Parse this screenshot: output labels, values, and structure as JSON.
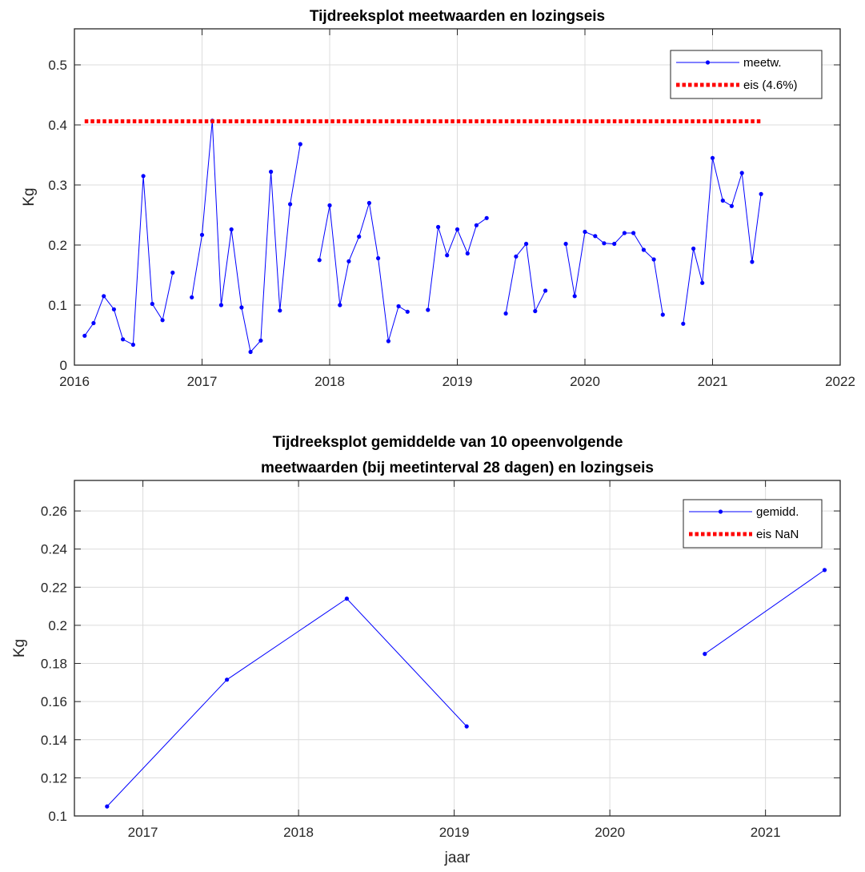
{
  "colors": {
    "series": "#0000ff",
    "threshold": "#ff0000",
    "grid": "#dcdcdc",
    "axis": "#262626"
  },
  "chart_data": [
    {
      "type": "line",
      "title": "Tijdreeksplot meetwaarden en lozingseis",
      "xlabel": "",
      "ylabel": "Kg",
      "xlim": [
        2016,
        2022
      ],
      "ylim": [
        0,
        0.56
      ],
      "x_ticks": [
        2016,
        2017,
        2018,
        2019,
        2020,
        2021,
        2022
      ],
      "y_ticks": [
        0,
        0.1,
        0.2,
        0.3,
        0.4,
        0.5
      ],
      "y_tick_labels": [
        "0",
        "0.1",
        "0.2",
        "0.3",
        "0.4",
        "0.5"
      ],
      "grid": true,
      "legend_position": "top-right",
      "series": [
        {
          "name": "meetw.",
          "style": "line-with-markers",
          "segments": [
            [
              [
                2016.08,
                0.049
              ],
              [
                2016.15,
                0.07
              ],
              [
                2016.23,
                0.115
              ],
              [
                2016.31,
                0.093
              ],
              [
                2016.38,
                0.043
              ],
              [
                2016.46,
                0.034
              ],
              [
                2016.54,
                0.315
              ],
              [
                2016.61,
                0.102
              ],
              [
                2016.69,
                0.075
              ],
              [
                2016.77,
                0.154
              ]
            ],
            [
              [
                2016.92,
                0.113
              ],
              [
                2017.0,
                0.217
              ],
              [
                2017.08,
                0.407
              ],
              [
                2017.15,
                0.1
              ],
              [
                2017.23,
                0.226
              ],
              [
                2017.31,
                0.096
              ],
              [
                2017.38,
                0.022
              ],
              [
                2017.46,
                0.041
              ],
              [
                2017.54,
                0.322
              ],
              [
                2017.61,
                0.091
              ],
              [
                2017.69,
                0.268
              ],
              [
                2017.77,
                0.368
              ]
            ],
            [
              [
                2017.92,
                0.175
              ],
              [
                2018.0,
                0.266
              ],
              [
                2018.08,
                0.1
              ],
              [
                2018.15,
                0.173
              ],
              [
                2018.23,
                0.214
              ],
              [
                2018.31,
                0.27
              ],
              [
                2018.38,
                0.178
              ],
              [
                2018.46,
                0.04
              ],
              [
                2018.54,
                0.098
              ],
              [
                2018.61,
                0.089
              ]
            ],
            [
              [
                2018.77,
                0.092
              ],
              [
                2018.85,
                0.23
              ],
              [
                2018.92,
                0.183
              ],
              [
                2019.0,
                0.226
              ],
              [
                2019.08,
                0.186
              ],
              [
                2019.15,
                0.233
              ],
              [
                2019.23,
                0.245
              ]
            ],
            [
              [
                2019.38,
                0.086
              ],
              [
                2019.46,
                0.181
              ],
              [
                2019.54,
                0.202
              ],
              [
                2019.61,
                0.09
              ],
              [
                2019.69,
                0.124
              ]
            ],
            [
              [
                2019.85,
                0.202
              ],
              [
                2019.92,
                0.115
              ],
              [
                2020.0,
                0.222
              ],
              [
                2020.08,
                0.215
              ],
              [
                2020.15,
                0.203
              ],
              [
                2020.23,
                0.202
              ],
              [
                2020.31,
                0.22
              ],
              [
                2020.38,
                0.22
              ],
              [
                2020.46,
                0.192
              ],
              [
                2020.54,
                0.176
              ],
              [
                2020.61,
                0.084
              ]
            ],
            [
              [
                2020.77,
                0.069
              ],
              [
                2020.85,
                0.194
              ],
              [
                2020.92,
                0.137
              ],
              [
                2021.0,
                0.345
              ],
              [
                2021.08,
                0.274
              ],
              [
                2021.15,
                0.265
              ],
              [
                2021.23,
                0.32
              ],
              [
                2021.31,
                0.172
              ],
              [
                2021.38,
                0.285
              ]
            ]
          ]
        },
        {
          "name": "eis (4.6%)",
          "style": "dotted-thick",
          "segments": [
            [
              [
                2016.08,
                0.406
              ],
              [
                2021.38,
                0.406
              ]
            ]
          ]
        }
      ]
    },
    {
      "type": "line",
      "title": "Tijdreeksplot gemiddelde van 10 opeenvolgende meetwaarden (bij meetinterval 28 dagen) en lozingseis",
      "title_lines": [
        "Tijdreeksplot gemiddelde van 10 opeenvolgende",
        "meetwaarden (bij meetinterval 28 dagen) en lozingseis"
      ],
      "xlabel": "jaar",
      "ylabel": "Kg",
      "xlim": [
        2016.56,
        2021.48
      ],
      "ylim": [
        0.1,
        0.276
      ],
      "x_ticks": [
        2017,
        2018,
        2019,
        2020,
        2021
      ],
      "y_ticks": [
        0.1,
        0.12,
        0.14,
        0.16,
        0.18,
        0.2,
        0.22,
        0.24,
        0.26
      ],
      "y_tick_labels": [
        "0.1",
        "0.12",
        "0.14",
        "0.16",
        "0.18",
        "0.2",
        "0.22",
        "0.24",
        "0.26"
      ],
      "grid": true,
      "legend_position": "top-right",
      "series": [
        {
          "name": "gemidd.",
          "style": "line-with-markers",
          "segments": [
            [
              [
                2016.77,
                0.105
              ],
              [
                2017.54,
                0.1715
              ],
              [
                2018.31,
                0.214
              ],
              [
                2019.08,
                0.147
              ]
            ],
            [
              [
                2020.61,
                0.185
              ],
              [
                2021.38,
                0.229
              ]
            ]
          ]
        },
        {
          "name": "eis NaN",
          "style": "dotted-thick",
          "segments": []
        }
      ]
    }
  ]
}
